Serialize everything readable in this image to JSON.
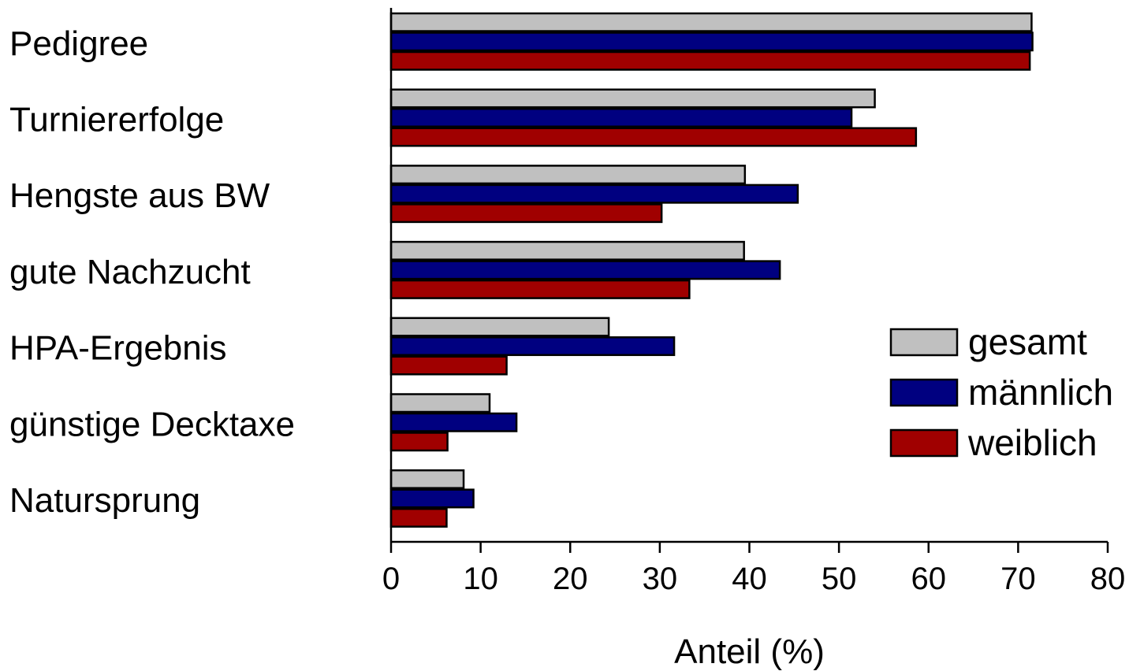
{
  "chart_data": {
    "type": "bar",
    "orientation": "horizontal",
    "categories": [
      "Pedigree",
      "Turniererfolge",
      "Hengste aus BW",
      "gute Nachzucht",
      "HPA-Ergebnis",
      "günstige Decktaxe",
      "Natursprung"
    ],
    "series": [
      {
        "name": "gesamt",
        "color": "#c0c0c0",
        "values": [
          71.5,
          54.0,
          39.5,
          39.4,
          24.3,
          11.0,
          8.1
        ]
      },
      {
        "name": "männlich",
        "color": "#000080",
        "values": [
          71.6,
          51.4,
          45.4,
          43.4,
          31.6,
          14.0,
          9.2
        ]
      },
      {
        "name": "weiblich",
        "color": "#a00000",
        "values": [
          71.3,
          58.6,
          30.2,
          33.3,
          12.9,
          6.3,
          6.2
        ]
      }
    ],
    "xlabel": "Anteil (%)",
    "xlim": [
      0,
      80
    ],
    "xticks": [
      0,
      10,
      20,
      30,
      40,
      50,
      60,
      70,
      80
    ],
    "grid": false,
    "legend_position": "right"
  }
}
